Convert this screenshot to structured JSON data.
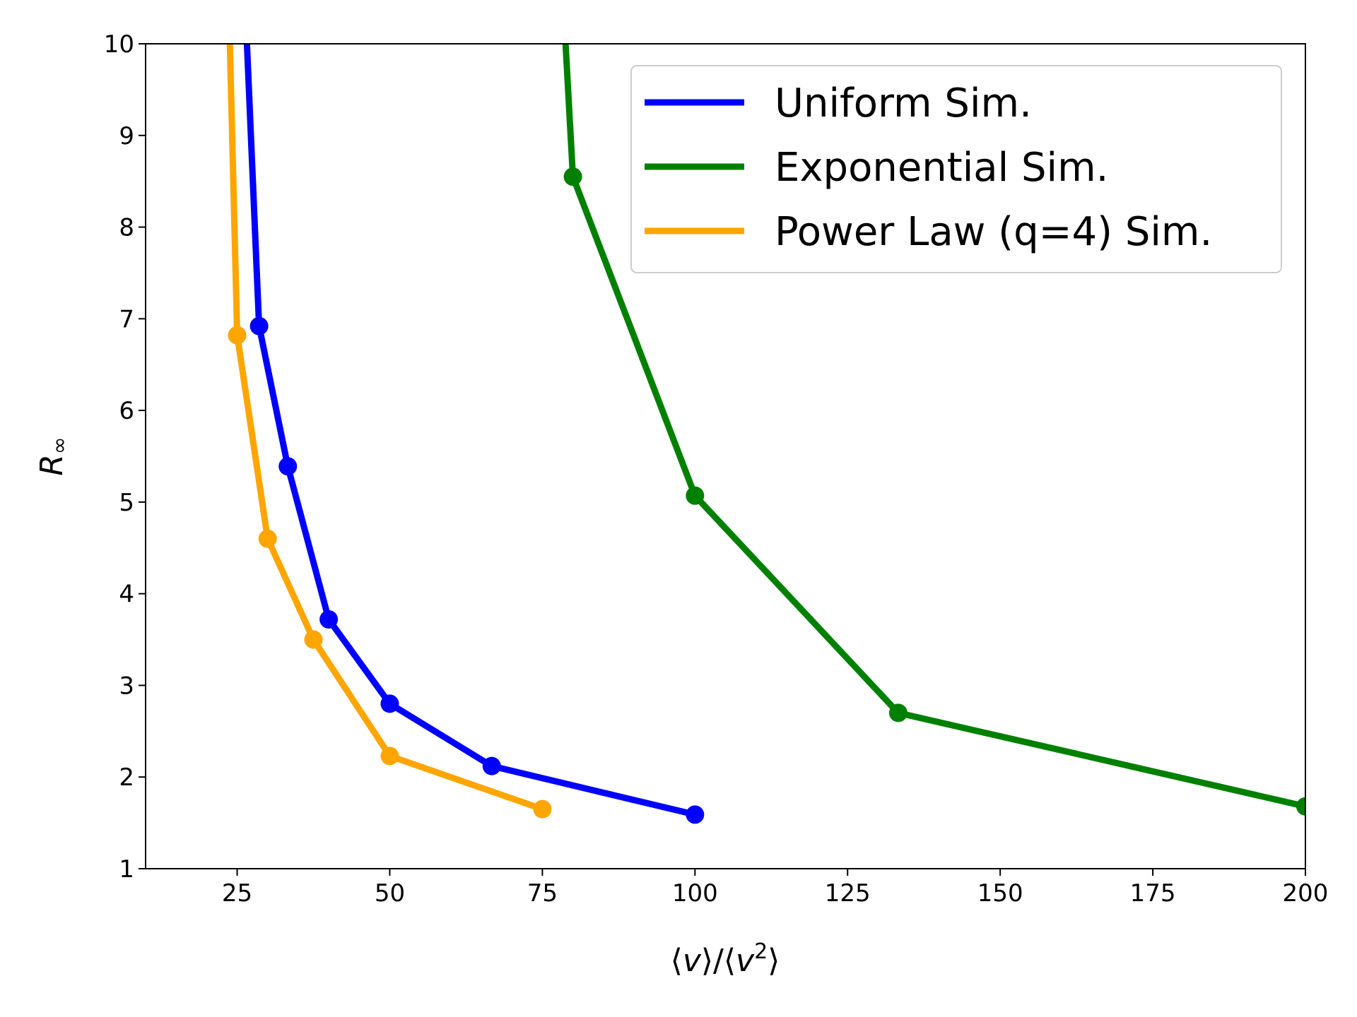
{
  "chart_data": {
    "type": "line",
    "title": "",
    "xlabel_parts": {
      "open": "⟨",
      "v1": "v",
      "mid": "⟩/⟨",
      "v2": "v",
      "sup": "2",
      "close": "⟩"
    },
    "ylabel_parts": {
      "main": "R",
      "sub": "∞"
    },
    "xlim": [
      10,
      200
    ],
    "ylim": [
      1,
      10
    ],
    "xticks": [
      25,
      50,
      75,
      100,
      125,
      150,
      175,
      200
    ],
    "yticks": [
      1,
      2,
      3,
      4,
      5,
      6,
      7,
      8,
      9,
      10
    ],
    "grid": false,
    "legend": "top-right",
    "series": [
      {
        "name": "Uniform Sim.",
        "color": "#0000ff",
        "points": [
          [
            26.6,
            10.0
          ],
          [
            28.6,
            6.92
          ],
          [
            33.3,
            5.39
          ],
          [
            40.0,
            3.72
          ],
          [
            50.0,
            2.8
          ],
          [
            66.7,
            2.12
          ],
          [
            100.0,
            1.59
          ]
        ],
        "markers": [
          1,
          2,
          3,
          4,
          5,
          6
        ]
      },
      {
        "name": "Exponential Sim.",
        "color": "#008000",
        "points": [
          [
            78.8,
            10.0
          ],
          [
            80.0,
            8.55
          ],
          [
            100.0,
            5.07
          ],
          [
            133.3,
            2.7
          ],
          [
            200.0,
            1.68
          ]
        ],
        "markers": [
          1,
          2,
          3,
          4
        ]
      },
      {
        "name": "Power Law (q=4) Sim.",
        "color": "#ffa500",
        "points": [
          [
            23.8,
            10.0
          ],
          [
            25.0,
            6.82
          ],
          [
            30.0,
            4.6
          ],
          [
            37.5,
            3.5
          ],
          [
            50.0,
            2.23
          ],
          [
            75.0,
            1.65
          ]
        ],
        "markers": [
          1,
          2,
          3,
          4,
          5
        ]
      }
    ]
  }
}
